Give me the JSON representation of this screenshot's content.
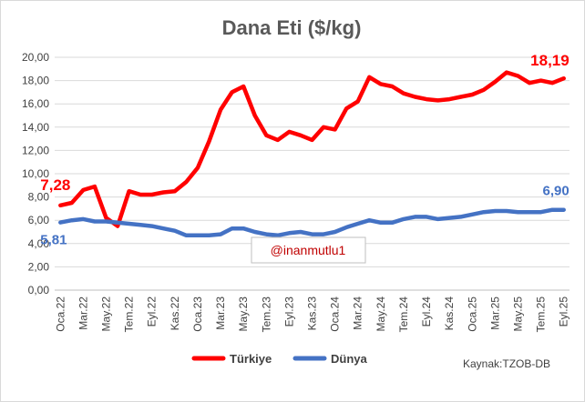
{
  "chart_data": {
    "type": "line",
    "title": "Dana Eti ($/kg)",
    "ylim": [
      0,
      20
    ],
    "y_ticks": [
      "0,00",
      "2,00",
      "4,00",
      "6,00",
      "8,00",
      "10,00",
      "12,00",
      "14,00",
      "16,00",
      "18,00",
      "20,00"
    ],
    "grid": true,
    "x_labels": [
      "Oca.22",
      "Mar.22",
      "May.22",
      "Tem.22",
      "Eyl.22",
      "Kas.22",
      "Oca.23",
      "Mar.23",
      "May.23",
      "Tem.23",
      "Eyl.23",
      "Kas.23",
      "Oca.24",
      "Mar.24",
      "May.24",
      "Tem.24",
      "Eyl.24",
      "Kas.24",
      "Oca.25",
      "Mar.25",
      "May.25",
      "Tem.25",
      "Eyl.25"
    ],
    "x": [
      "Oca.22",
      "Şub.22",
      "Mar.22",
      "Nis.22",
      "May.22",
      "Haz.22",
      "Tem.22",
      "Ağu.22",
      "Eyl.22",
      "Eki.22",
      "Kas.22",
      "Ara.22",
      "Oca.23",
      "Şub.23",
      "Mar.23",
      "Nis.23",
      "May.23",
      "Haz.23",
      "Tem.23",
      "Ağu.23",
      "Eyl.23",
      "Eki.23",
      "Kas.23",
      "Ara.23",
      "Oca.24",
      "Şub.24",
      "Mar.24",
      "Nis.24",
      "May.24",
      "Haz.24",
      "Tem.24",
      "Ağu.24",
      "Eyl.24",
      "Eki.24",
      "Kas.24",
      "Ara.24",
      "Oca.25",
      "Şub.25",
      "Mar.25",
      "Nis.25",
      "May.25",
      "Haz.25",
      "Tem.25",
      "Ağu.25",
      "Eyl.25"
    ],
    "series": [
      {
        "name": "Türkiye",
        "color": "#ff0000",
        "values": [
          7.28,
          7.5,
          8.6,
          8.9,
          6.2,
          5.5,
          8.5,
          8.2,
          8.2,
          8.4,
          8.5,
          9.3,
          10.5,
          12.8,
          15.5,
          17.0,
          17.5,
          15.0,
          13.3,
          12.9,
          13.6,
          13.3,
          12.9,
          14.0,
          13.8,
          15.6,
          16.2,
          18.3,
          17.7,
          17.5,
          16.9,
          16.6,
          16.4,
          16.3,
          16.4,
          16.6,
          16.8,
          17.2,
          17.9,
          18.7,
          18.4,
          17.8,
          18.0,
          17.8,
          18.19
        ],
        "first_label": "7,28",
        "last_label": "18,19"
      },
      {
        "name": "Dünya",
        "color": "#4472c4",
        "values": [
          5.81,
          6.0,
          6.1,
          5.9,
          5.9,
          5.8,
          5.7,
          5.6,
          5.5,
          5.3,
          5.1,
          4.7,
          4.7,
          4.7,
          4.8,
          5.3,
          5.3,
          5.0,
          4.8,
          4.7,
          4.9,
          5.0,
          4.8,
          4.8,
          5.0,
          5.4,
          5.7,
          6.0,
          5.8,
          5.8,
          6.1,
          6.3,
          6.3,
          6.1,
          6.2,
          6.3,
          6.5,
          6.7,
          6.8,
          6.8,
          6.7,
          6.7,
          6.7,
          6.9,
          6.9
        ],
        "first_label": "5,81",
        "last_label": "6,90"
      }
    ],
    "legend_position": "bottom",
    "watermark": "@inanmutlu1",
    "source": "Kaynak:TZOB-DB"
  }
}
